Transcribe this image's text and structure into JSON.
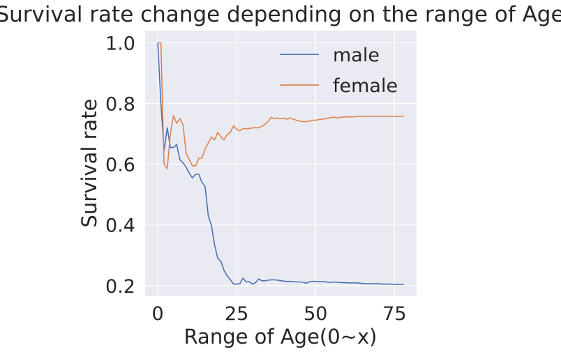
{
  "chart_data": {
    "type": "line",
    "title": "Survival rate change depending on the range of Age",
    "xlabel": "Range of Age(0~x)",
    "ylabel": "Survival rate",
    "xlim": [
      -4,
      82
    ],
    "ylim": [
      0.165,
      1.04
    ],
    "xticks": [
      0,
      25,
      50,
      75
    ],
    "yticks": [
      0.2,
      0.4,
      0.6,
      0.8,
      1.0
    ],
    "xtick_labels": [
      "0",
      "25",
      "50",
      "75"
    ],
    "ytick_labels": [
      "0.2",
      "0.4",
      "0.6",
      "0.8",
      "1.0"
    ],
    "grid": true,
    "legend": "top-right",
    "series": [
      {
        "name": "male",
        "color": "#4c72b0",
        "x": [
          0,
          1,
          2,
          3,
          4,
          5,
          6,
          7,
          8,
          9,
          10,
          11,
          12,
          13,
          14,
          15,
          16,
          17,
          18,
          19,
          20,
          21,
          22,
          23,
          24,
          25,
          26,
          27,
          28,
          29,
          30,
          31,
          32,
          33,
          34,
          35,
          36,
          37,
          38,
          39,
          40,
          41,
          42,
          43,
          44,
          45,
          46,
          47,
          48,
          49,
          50,
          51,
          52,
          53,
          54,
          55,
          56,
          57,
          58,
          59,
          60,
          61,
          62,
          63,
          64,
          65,
          66,
          67,
          68,
          69,
          70,
          71,
          72,
          73,
          74,
          75,
          76,
          77,
          78
        ],
        "values": [
          1.0,
          0.8,
          0.645,
          0.72,
          0.655,
          0.655,
          0.665,
          0.615,
          0.605,
          0.59,
          0.57,
          0.555,
          0.567,
          0.567,
          0.54,
          0.527,
          0.43,
          0.398,
          0.335,
          0.29,
          0.28,
          0.25,
          0.232,
          0.22,
          0.205,
          0.205,
          0.206,
          0.225,
          0.212,
          0.213,
          0.205,
          0.21,
          0.222,
          0.216,
          0.216,
          0.218,
          0.219,
          0.219,
          0.218,
          0.216,
          0.215,
          0.213,
          0.214,
          0.213,
          0.212,
          0.212,
          0.211,
          0.208,
          0.212,
          0.214,
          0.214,
          0.213,
          0.213,
          0.213,
          0.211,
          0.211,
          0.212,
          0.211,
          0.21,
          0.21,
          0.209,
          0.209,
          0.209,
          0.209,
          0.208,
          0.207,
          0.206,
          0.206,
          0.206,
          0.206,
          0.206,
          0.205,
          0.205,
          0.205,
          0.205,
          0.204,
          0.204,
          0.204,
          0.204
        ]
      },
      {
        "name": "female",
        "color": "#dd8452",
        "x": [
          0,
          1,
          2,
          3,
          4,
          5,
          6,
          7,
          8,
          9,
          10,
          11,
          12,
          13,
          14,
          15,
          16,
          17,
          18,
          19,
          20,
          21,
          22,
          23,
          24,
          25,
          26,
          27,
          28,
          29,
          30,
          31,
          32,
          33,
          34,
          35,
          36,
          37,
          38,
          39,
          40,
          41,
          42,
          43,
          44,
          45,
          46,
          47,
          48,
          49,
          50,
          51,
          52,
          53,
          54,
          55,
          56,
          57,
          58,
          59,
          60,
          61,
          62,
          63,
          64,
          65,
          66,
          67,
          68,
          69,
          70,
          71,
          72,
          73,
          74,
          75,
          76,
          77,
          78
        ],
        "values": [
          1.0,
          1.0,
          0.6,
          0.585,
          0.7,
          0.76,
          0.735,
          0.75,
          0.73,
          0.635,
          0.615,
          0.595,
          0.595,
          0.62,
          0.62,
          0.65,
          0.67,
          0.69,
          0.68,
          0.705,
          0.69,
          0.68,
          0.698,
          0.705,
          0.727,
          0.715,
          0.71,
          0.717,
          0.717,
          0.717,
          0.72,
          0.72,
          0.72,
          0.725,
          0.732,
          0.742,
          0.755,
          0.75,
          0.752,
          0.75,
          0.752,
          0.748,
          0.752,
          0.748,
          0.745,
          0.742,
          0.74,
          0.74,
          0.742,
          0.745,
          0.745,
          0.747,
          0.748,
          0.75,
          0.752,
          0.754,
          0.755,
          0.752,
          0.755,
          0.755,
          0.756,
          0.756,
          0.756,
          0.757,
          0.758,
          0.758,
          0.758,
          0.758,
          0.758,
          0.758,
          0.758,
          0.758,
          0.758,
          0.758,
          0.758,
          0.758,
          0.758,
          0.758,
          0.758
        ]
      }
    ]
  }
}
